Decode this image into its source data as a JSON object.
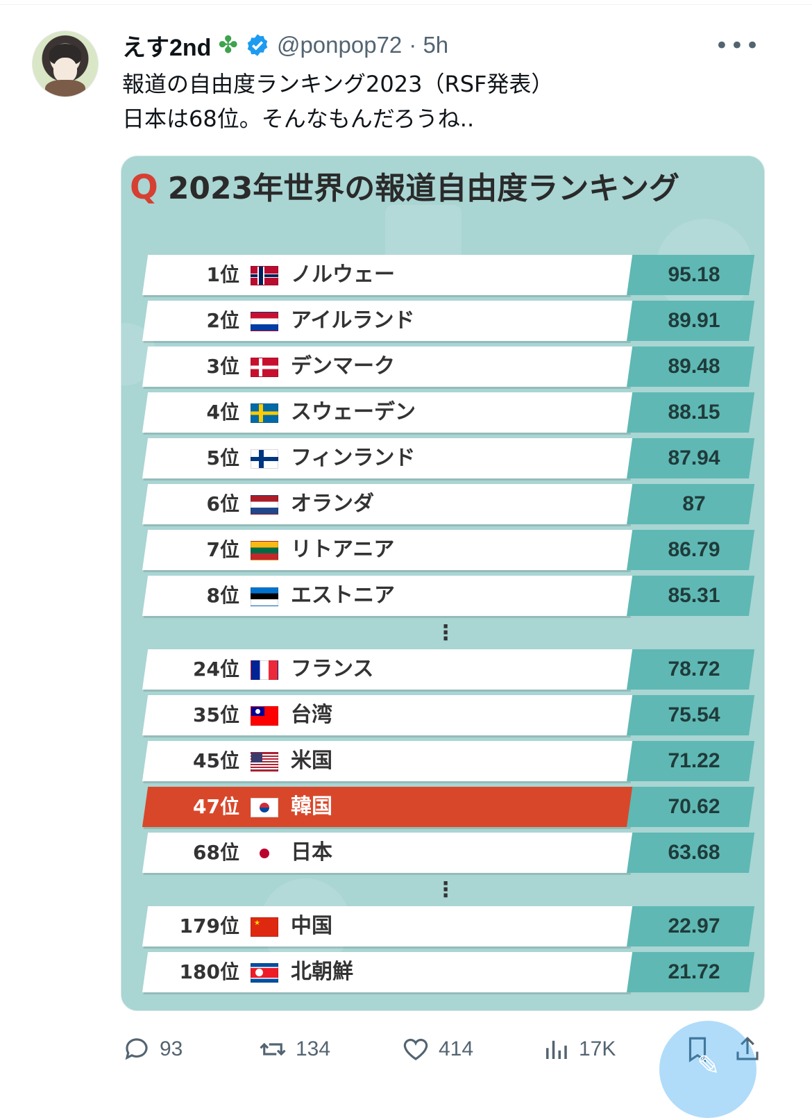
{
  "post": {
    "display_name": "えす2nd",
    "badge_icon": "puzzle-icon",
    "handle": "@ponpop72",
    "time": "· 5h",
    "line1": "報道の自由度ランキング2023（RSF発表）",
    "line2": "日本は68位。そんなもんだろうね.."
  },
  "card": {
    "title_q": "Q",
    "title": "2023年世界の報道自由度ランキング",
    "ellipsis": "⋮",
    "rows": [
      {
        "rank": "1位",
        "country": "ノルウェー",
        "score": "95.18"
      },
      {
        "rank": "2位",
        "country": "アイルランド",
        "score": "89.91"
      },
      {
        "rank": "3位",
        "country": "デンマーク",
        "score": "89.48"
      },
      {
        "rank": "4位",
        "country": "スウェーデン",
        "score": "88.15"
      },
      {
        "rank": "5位",
        "country": "フィンランド",
        "score": "87.94"
      },
      {
        "rank": "6位",
        "country": "オランダ",
        "score": "87"
      },
      {
        "rank": "7位",
        "country": "リトアニア",
        "score": "86.79"
      },
      {
        "rank": "8位",
        "country": "エストニア",
        "score": "85.31"
      },
      {
        "rank": "24位",
        "country": "フランス",
        "score": "78.72"
      },
      {
        "rank": "35位",
        "country": "台湾",
        "score": "75.54"
      },
      {
        "rank": "45位",
        "country": "米国",
        "score": "71.22"
      },
      {
        "rank": "47位",
        "country": "韓国",
        "score": "70.62"
      },
      {
        "rank": "68位",
        "country": "日本",
        "score": "63.68"
      },
      {
        "rank": "179位",
        "country": "中国",
        "score": "22.97"
      },
      {
        "rank": "180位",
        "country": "北朝鮮",
        "score": "21.72"
      }
    ],
    "highlight_color": "#d9472a"
  },
  "actions": {
    "replies": "93",
    "reposts": "134",
    "likes": "414",
    "views": "17K"
  },
  "colors": {
    "card_bg": "#a9d5d3",
    "score_bg": "#5fb8b4",
    "accent": "#1d9bf0"
  }
}
